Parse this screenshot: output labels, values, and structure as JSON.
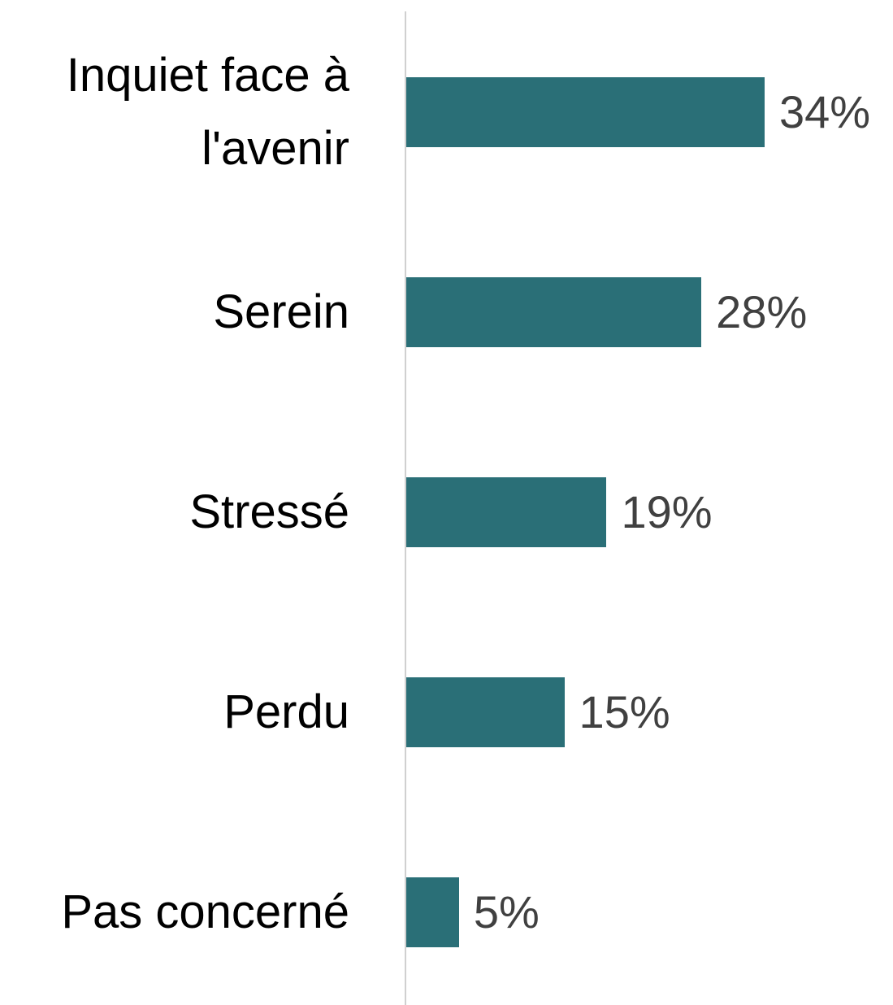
{
  "chart_data": {
    "type": "bar",
    "orientation": "horizontal",
    "categories": [
      "Inquiet face à l'avenir",
      "Serein",
      "Stressé",
      "Perdu",
      "Pas concerné"
    ],
    "values": [
      34,
      28,
      19,
      15,
      5
    ],
    "value_labels": [
      "34%",
      "28%",
      "19%",
      "15%",
      "5%"
    ],
    "color": "#2a6f77"
  }
}
